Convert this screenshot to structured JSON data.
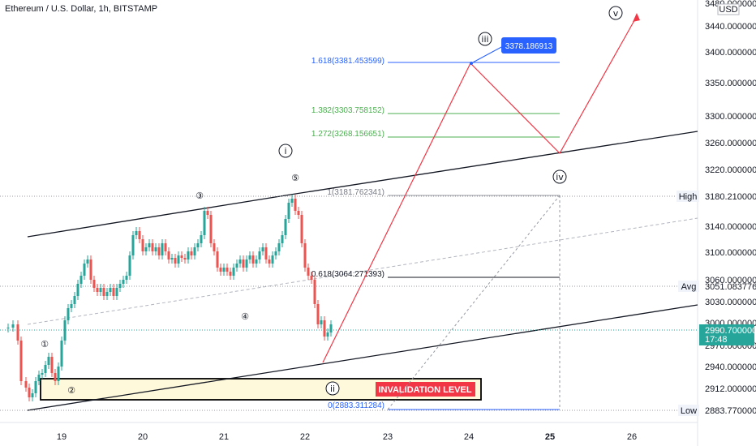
{
  "title": "Ethereum / U.S. Dollar, 1h, BITSTAMP",
  "currency": "USD",
  "price_axis": [
    "3480.000000",
    "3440.000000",
    "3400.000000",
    "3350.000000",
    "3300.000000",
    "3260.000000",
    "3220.000000",
    "3140.000000",
    "3100.000000",
    "3060.000000",
    "3030.000000",
    "3000.000000",
    "2970.000000",
    "2940.000000",
    "2912.000000"
  ],
  "time_axis": [
    "19",
    "20",
    "21",
    "22",
    "23",
    "24",
    "25",
    "26"
  ],
  "markers": {
    "high_label": "High",
    "high_value": "3180.210000",
    "avg_label": "Avg",
    "avg_value": "3051.083776",
    "low_label": "Low",
    "low_value": "2883.770000",
    "last_value": "2990.700000",
    "last_time": "17:48"
  },
  "fib": {
    "f1618": "1.618(3381.453599)",
    "f1382": "1.382(3303.758152)",
    "f1272": "1.272(3268.156651)",
    "f1": "1(3181.762341)",
    "f0618": "0.618(3064.271393)",
    "f0": "0(2883.311284)"
  },
  "target_label": "3378.186913",
  "invalidation_label": "INVALIDATION LEVEL",
  "waves": {
    "i": "ⓘ",
    "ii": "ⓘⓘ",
    "iii": "ⓘⓘⓘ",
    "iv": "ⓘⓥ",
    "v": "ⓥ",
    "w1": "①",
    "w2": "②",
    "w3": "③",
    "w4": "④",
    "w5": "⑤"
  },
  "wave_text": {
    "i": "i",
    "ii": "ii",
    "iii": "iii",
    "iv": "iv",
    "v": "v"
  },
  "colors": {
    "up": "#26a69a",
    "down": "#ef5350",
    "projection": "#f23645",
    "fib_blue": "#2962ff",
    "fib_green": "#4caf50",
    "last": "#26a69a",
    "invalid_bg": "#fff9db"
  }
}
